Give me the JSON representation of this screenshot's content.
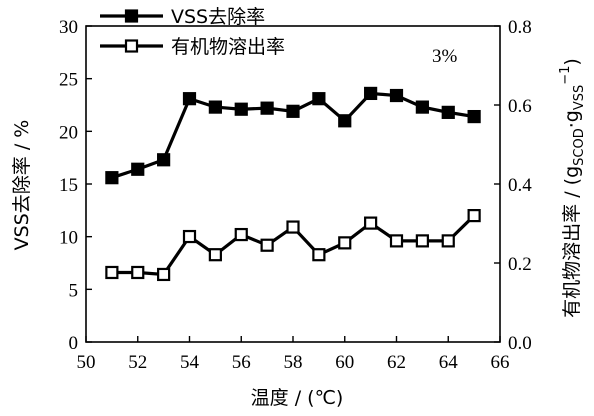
{
  "chart_data": {
    "type": "line",
    "x": [
      51,
      52,
      53,
      54,
      55,
      56,
      57,
      58,
      59,
      60,
      61,
      62,
      63,
      64,
      65
    ],
    "xlabel": "温度 / (℃)",
    "xlim": [
      50,
      66
    ],
    "xticks": [
      50,
      52,
      54,
      56,
      58,
      60,
      62,
      64,
      66
    ],
    "ylabel_left": "VSS去除率 / %",
    "ylim_left": [
      0,
      30
    ],
    "yticks_left": [
      0,
      5,
      10,
      15,
      20,
      25,
      30
    ],
    "ylabel_right": {
      "prefix": "有机物溶出率 / (g",
      "sub1": "SCOD",
      "dot": "·g",
      "sub2": "VSS",
      "sup": "−1",
      "suffix": ")"
    },
    "ylim_right": [
      0,
      0.8
    ],
    "yticks_right": [
      "0.0",
      "0.2",
      "0.4",
      "0.6",
      "0.8"
    ],
    "annotation": "3%",
    "legend_position": "top-left",
    "series": [
      {
        "name": "VSS去除率",
        "axis": "left",
        "marker": "filled-square",
        "color": "#000000",
        "values": [
          15.6,
          16.4,
          17.3,
          23.1,
          22.3,
          22.1,
          22.2,
          21.9,
          23.1,
          21.0,
          23.6,
          23.4,
          22.3,
          21.8,
          21.4
        ]
      },
      {
        "name": "有机物溶出率",
        "axis": "right",
        "marker": "open-square",
        "color": "#000000",
        "values": [
          0.176,
          0.176,
          0.171,
          0.267,
          0.221,
          0.272,
          0.245,
          0.291,
          0.221,
          0.251,
          0.301,
          0.256,
          0.256,
          0.256,
          0.32
        ]
      }
    ]
  }
}
